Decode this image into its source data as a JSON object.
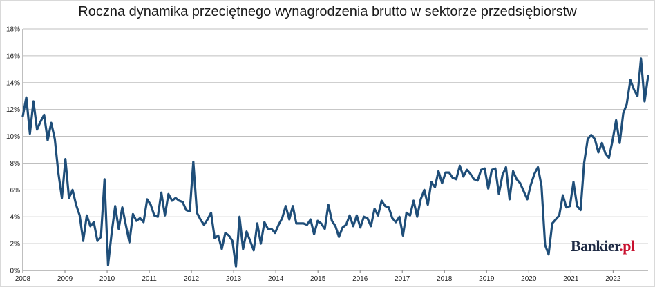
{
  "chart_data": {
    "type": "line",
    "title": "Roczna dynamika przeciętnego wynagrodzenia brutto w sektorze przedsiębiorstw",
    "xlabel": "",
    "ylabel": "",
    "x_tick_labels": [
      "2008",
      "2009",
      "2010",
      "2011",
      "2012",
      "2013",
      "2014",
      "2015",
      "2016",
      "2017",
      "2018",
      "2019",
      "2020",
      "2021",
      "2022"
    ],
    "y_tick_labels": [
      "0%",
      "2%",
      "4%",
      "6%",
      "8%",
      "10%",
      "12%",
      "14%",
      "16%",
      "18%"
    ],
    "ylim": [
      0,
      18
    ],
    "xlim": [
      2008,
      2022.83
    ],
    "grid": "horizontal",
    "line_color": "#1f4e79",
    "series": [
      {
        "values": [
          11.5,
          12.9,
          10.2,
          12.6,
          10.5,
          11.1,
          11.6,
          9.7,
          11.0,
          9.8,
          7.3,
          5.4,
          8.3,
          5.4,
          6.0,
          4.9,
          4.1,
          2.2,
          4.1,
          3.3,
          3.6,
          2.2,
          2.5,
          6.8,
          0.4,
          2.8,
          4.8,
          3.1,
          4.7,
          3.4,
          2.1,
          4.2,
          3.7,
          3.9,
          3.6,
          5.3,
          4.9,
          4.1,
          4.0,
          5.8,
          4.1,
          5.7,
          5.2,
          5.4,
          5.2,
          5.1,
          4.5,
          4.4,
          8.1,
          4.3,
          3.8,
          3.4,
          3.8,
          4.3,
          2.4,
          2.6,
          1.6,
          2.8,
          2.6,
          2.2,
          0.3,
          4.0,
          1.6,
          2.9,
          2.2,
          1.5,
          3.5,
          2.0,
          3.6,
          3.1,
          3.1,
          2.8,
          3.4,
          3.9,
          4.8,
          3.8,
          4.8,
          3.5,
          3.5,
          3.5,
          3.4,
          3.8,
          2.7,
          3.7,
          3.5,
          3.1,
          4.9,
          3.7,
          3.3,
          2.5,
          3.2,
          3.4,
          4.1,
          3.3,
          4.1,
          3.2,
          4.0,
          3.9,
          3.3,
          4.6,
          4.1,
          5.2,
          4.8,
          4.7,
          3.9,
          3.6,
          4.0,
          2.6,
          4.3,
          4.1,
          5.2,
          4.0,
          5.3,
          6.0,
          4.9,
          6.6,
          6.2,
          7.4,
          6.5,
          7.3,
          7.3,
          6.9,
          6.8,
          7.8,
          7.0,
          7.5,
          7.2,
          6.8,
          6.7,
          7.5,
          7.6,
          6.1,
          7.5,
          7.6,
          5.7,
          7.1,
          7.7,
          5.3,
          7.4,
          6.8,
          6.5,
          5.9,
          5.3,
          6.4,
          7.2,
          7.7,
          6.3,
          1.9,
          1.2,
          3.5,
          3.8,
          4.1,
          5.6,
          4.7,
          4.8,
          6.6,
          4.8,
          4.5,
          8.0,
          9.8,
          10.1,
          9.8,
          8.8,
          9.5,
          8.7,
          8.4,
          9.7,
          11.2,
          9.5,
          11.7,
          12.4,
          14.2,
          13.5,
          13.0,
          15.8,
          12.6,
          14.5
        ]
      }
    ]
  },
  "logo": {
    "text": "Bankier",
    "suffix": ".pl"
  }
}
